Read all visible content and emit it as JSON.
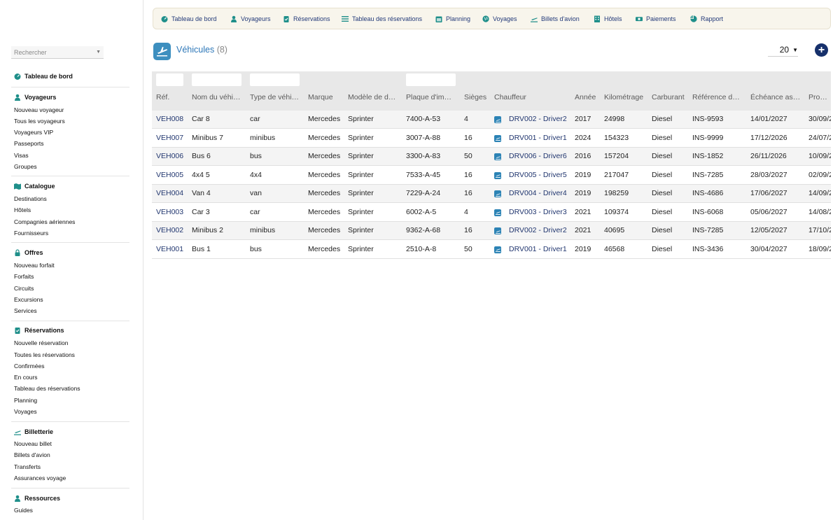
{
  "sidebar": {
    "search_placeholder": "Rechercher",
    "dashboard": "Tableau de bord",
    "sections": [
      {
        "title": "Voyageurs",
        "icon": "person-icon",
        "items": [
          "Nouveau voyageur",
          "Tous les voyageurs",
          "Voyageurs VIP",
          "Passeports",
          "Visas",
          "Groupes"
        ]
      },
      {
        "title": "Catalogue",
        "icon": "map-icon",
        "items": [
          "Destinations",
          "Hôtels",
          "Compagnies aériennes",
          "Fournisseurs"
        ]
      },
      {
        "title": "Offres",
        "icon": "lock-icon",
        "items": [
          "Nouveau forfait",
          "Forfaits",
          "Circuits",
          "Excursions",
          "Services"
        ]
      },
      {
        "title": "Réservations",
        "icon": "clipboard-icon",
        "items": [
          "Nouvelle réservation",
          "Toutes les réservations",
          "Confirmées",
          "En cours",
          "Tableau des réservations",
          "Planning",
          "Voyages"
        ]
      },
      {
        "title": "Billetterie",
        "icon": "plane-icon",
        "items": [
          "Nouveau billet",
          "Billets d'avion",
          "Transferts",
          "Assurances voyage"
        ]
      },
      {
        "title": "Ressources",
        "icon": "person-icon",
        "items": [
          "Guides"
        ]
      }
    ]
  },
  "topnav": [
    {
      "label": "Tableau de bord",
      "icon": "dashboard-icon"
    },
    {
      "label": "Voyageurs",
      "icon": "person-icon"
    },
    {
      "label": "Réservations",
      "icon": "clipboard-icon"
    },
    {
      "label": "Tableau des réservations",
      "icon": "list-icon"
    },
    {
      "label": "Planning",
      "icon": "calendar-icon"
    },
    {
      "label": "Voyages",
      "icon": "globe-icon"
    },
    {
      "label": "Billets d'avion",
      "icon": "plane-icon"
    },
    {
      "label": "Hôtels",
      "icon": "hotel-icon"
    },
    {
      "label": "Paiements",
      "icon": "money-icon"
    },
    {
      "label": "Rapport",
      "icon": "chart-icon"
    }
  ],
  "header": {
    "title": "Véhicules",
    "count": "(8)",
    "page_size": "20"
  },
  "table": {
    "columns": [
      "Réf.",
      "Nom du véhi…",
      "Type de véhi…",
      "Marque",
      "Modèle de d…",
      "Plaque d'im…",
      "Sièges",
      "Chauffeur",
      "Année",
      "Kilométrage",
      "Carburant",
      "Référence d…",
      "Échéance as…",
      "Procha…"
    ],
    "rows": [
      [
        "VEH008",
        "Car 8",
        "car",
        "Mercedes",
        "Sprinter",
        "7400-A-53",
        "4",
        "DRV002 - Driver2",
        "2017",
        "24998",
        "Diesel",
        "INS-9593",
        "14/01/2027",
        "30/09/2"
      ],
      [
        "VEH007",
        "Minibus 7",
        "minibus",
        "Mercedes",
        "Sprinter",
        "3007-A-88",
        "16",
        "DRV001 - Driver1",
        "2024",
        "154323",
        "Diesel",
        "INS-9999",
        "17/12/2026",
        "24/07/2"
      ],
      [
        "VEH006",
        "Bus 6",
        "bus",
        "Mercedes",
        "Sprinter",
        "3300-A-83",
        "50",
        "DRV006 - Driver6",
        "2016",
        "157204",
        "Diesel",
        "INS-1852",
        "26/11/2026",
        "10/09/2"
      ],
      [
        "VEH005",
        "4x4 5",
        "4x4",
        "Mercedes",
        "Sprinter",
        "7533-A-45",
        "16",
        "DRV005 - Driver5",
        "2019",
        "217047",
        "Diesel",
        "INS-7285",
        "28/03/2027",
        "02/09/2"
      ],
      [
        "VEH004",
        "Van 4",
        "van",
        "Mercedes",
        "Sprinter",
        "7229-A-24",
        "16",
        "DRV004 - Driver4",
        "2019",
        "198259",
        "Diesel",
        "INS-4686",
        "17/06/2027",
        "14/09/2"
      ],
      [
        "VEH003",
        "Car 3",
        "car",
        "Mercedes",
        "Sprinter",
        "6002-A-5",
        "4",
        "DRV003 - Driver3",
        "2021",
        "109374",
        "Diesel",
        "INS-6068",
        "05/06/2027",
        "14/08/2"
      ],
      [
        "VEH002",
        "Minibus 2",
        "minibus",
        "Mercedes",
        "Sprinter",
        "9362-A-68",
        "16",
        "DRV002 - Driver2",
        "2021",
        "40695",
        "Diesel",
        "INS-7285",
        "12/05/2027",
        "17/10/2"
      ],
      [
        "VEH001",
        "Bus 1",
        "bus",
        "Mercedes",
        "Sprinter",
        "2510-A-8",
        "50",
        "DRV001 - Driver1",
        "2019",
        "46568",
        "Diesel",
        "INS-3436",
        "30/04/2027",
        "18/09/2"
      ]
    ]
  },
  "colors": {
    "accent": "#2d77b8",
    "link": "#21366f",
    "nav_text": "#233a79",
    "icon_teal": "#1f8f8a",
    "add_button": "#16306b"
  }
}
